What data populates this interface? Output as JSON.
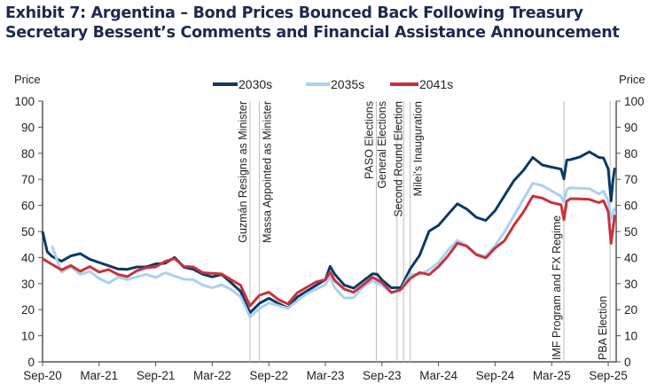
{
  "chart_data": {
    "type": "line",
    "title": "Exhibit 7: Argentina – Bond Prices Bounced Back Following Treasury Secretary Bessent’s Comments and Financial Assistance Announcement",
    "ylabel_left": "Price",
    "ylabel_right": "Price",
    "ylim": [
      0,
      100
    ],
    "yticks": [
      0,
      10,
      20,
      30,
      40,
      50,
      60,
      70,
      80,
      90,
      100
    ],
    "x_unit": "months since Sep-20",
    "xlim": [
      0,
      61
    ],
    "xticks": [
      {
        "x": 0,
        "label": "Sep-20"
      },
      {
        "x": 6,
        "label": "Mar-21"
      },
      {
        "x": 12,
        "label": "Sep-21"
      },
      {
        "x": 18,
        "label": "Mar-22"
      },
      {
        "x": 24,
        "label": "Sep-22"
      },
      {
        "x": 30,
        "label": "Mar-23"
      },
      {
        "x": 36,
        "label": "Sep-23"
      },
      {
        "x": 42,
        "label": "Mar-24"
      },
      {
        "x": 48,
        "label": "Sep-24"
      },
      {
        "x": 54,
        "label": "Mar-25"
      },
      {
        "x": 60,
        "label": "Sep-25"
      }
    ],
    "legend_position": "top-center",
    "events": [
      {
        "x": 22,
        "label": "Guzmán Resigns as Minister"
      },
      {
        "x": 23,
        "label": "Massa Appointed as Minister"
      },
      {
        "x": 35.4,
        "label": "PASO Elections"
      },
      {
        "x": 37.6,
        "label": "General Elections"
      },
      {
        "x": 38.3,
        "label": "Second Round Election"
      },
      {
        "x": 39,
        "label": "Milei's Inauguration"
      },
      {
        "x": 55.3,
        "label": "IMF Program and FX Regime"
      },
      {
        "x": 60.2,
        "label": "PBA Election"
      }
    ],
    "series": [
      {
        "name": "2030s",
        "color": "#0b3a66",
        "x": [
          0,
          0.5,
          1,
          2,
          3,
          4,
          5,
          6,
          7,
          8,
          9,
          10,
          11,
          12,
          13,
          14,
          15,
          16,
          17,
          18,
          19,
          20,
          21,
          22,
          22.5,
          23,
          24,
          25,
          26,
          27,
          28,
          29,
          30,
          30.5,
          31,
          32,
          33,
          34,
          35,
          35.5,
          36,
          37,
          38,
          39,
          40,
          41,
          42,
          43,
          44,
          45,
          46,
          47,
          48,
          49,
          50,
          51,
          52,
          53,
          54,
          55,
          55.3,
          55.6,
          56,
          57,
          58,
          59,
          59.5,
          60,
          60.3,
          60.5,
          60.7
        ],
        "y": [
          50,
          42,
          40,
          38,
          40,
          41,
          39,
          38,
          37,
          36,
          36,
          37,
          37,
          38,
          38,
          40,
          36,
          35,
          33,
          32,
          33,
          30,
          27,
          19,
          21,
          23,
          25,
          23,
          21,
          25,
          27,
          29,
          31,
          36,
          33,
          29,
          28,
          31,
          34,
          34,
          32,
          29,
          29,
          36,
          41,
          50,
          52,
          56,
          60,
          58,
          55,
          54,
          58,
          64,
          70,
          74,
          79,
          76,
          75,
          74,
          70,
          77,
          77,
          78,
          80,
          78,
          78,
          74,
          62,
          70,
          75
        ]
      },
      {
        "name": "2035s",
        "color": "#a9d2f0",
        "x": [
          1,
          2,
          3,
          4,
          5,
          6,
          7,
          8,
          9,
          10,
          11,
          12,
          13,
          14,
          15,
          16,
          17,
          18,
          19,
          20,
          21,
          22,
          23,
          24,
          25,
          26,
          27,
          28,
          29,
          30,
          30.5,
          31,
          32,
          33,
          34,
          35,
          36,
          37,
          38,
          39,
          40,
          41,
          42,
          43,
          44,
          45,
          46,
          47,
          48,
          49,
          50,
          51,
          52,
          53,
          54,
          55,
          55.3,
          55.6,
          56,
          57,
          58,
          59,
          59.5,
          60,
          60.3,
          60.7
        ],
        "y": [
          45,
          35,
          37,
          34,
          35,
          32,
          30,
          32,
          31,
          32,
          33,
          32,
          34,
          33,
          32,
          32,
          30,
          29,
          30,
          28,
          25,
          17,
          20,
          22,
          21,
          20,
          23,
          26,
          28,
          30,
          33,
          29,
          25,
          25,
          29,
          31,
          29,
          26,
          27,
          33,
          33,
          35,
          38,
          43,
          47,
          45,
          42,
          41,
          45,
          50,
          56,
          62,
          68,
          67,
          65,
          63,
          61,
          66,
          67,
          67,
          67,
          65,
          66,
          62,
          55,
          59
        ]
      },
      {
        "name": "2041s",
        "color": "#c8333a",
        "x": [
          0,
          1,
          2,
          3,
          4,
          5,
          6,
          7,
          8,
          9,
          10,
          11,
          12,
          13,
          14,
          15,
          16,
          17,
          18,
          19,
          20,
          21,
          22,
          23,
          24,
          25,
          26,
          27,
          28,
          29,
          30,
          30.5,
          31,
          32,
          33,
          34,
          35,
          36,
          37,
          38,
          39,
          40,
          41,
          42,
          43,
          44,
          45,
          46,
          47,
          48,
          49,
          50,
          51,
          52,
          53,
          54,
          55,
          55.3,
          55.6,
          56,
          57,
          58,
          59,
          59.5,
          60,
          60.3,
          60.7
        ],
        "y": [
          39,
          37,
          35,
          37,
          35,
          37,
          35,
          36,
          34,
          33,
          35,
          36,
          36,
          38,
          39,
          36,
          36,
          34,
          34,
          34,
          32,
          30,
          22,
          26,
          27,
          24,
          22,
          26,
          28,
          30,
          31,
          34,
          31,
          28,
          27,
          30,
          33,
          31,
          27,
          28,
          32,
          34,
          33,
          36,
          40,
          45,
          44,
          41,
          40,
          44,
          47,
          53,
          58,
          64,
          63,
          61,
          60,
          54,
          61,
          62,
          62,
          62,
          61,
          62,
          58,
          46,
          57
        ]
      }
    ]
  }
}
